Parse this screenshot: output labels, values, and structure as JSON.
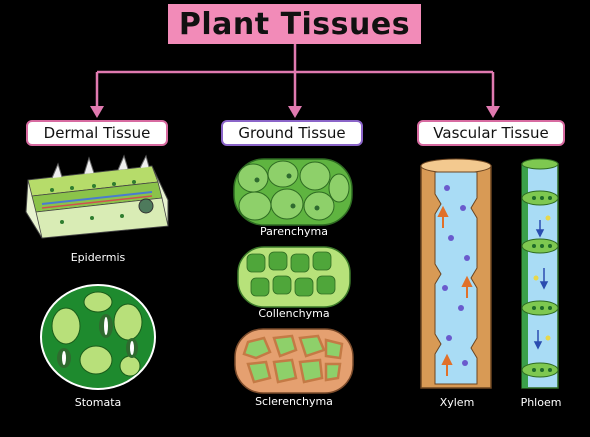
{
  "title": "Plant Tissues",
  "categories": {
    "dermal": "Dermal Tissue",
    "ground": "Ground Tissue",
    "vascular": "Vascular Tissue"
  },
  "labels": {
    "epidermis": "Epidermis",
    "stomata": "Stomata",
    "parenchyma": "Parenchyma",
    "collenchyma": "Collenchyma",
    "sclerenchyma": "Sclerenchyma",
    "xylem": "Xylem",
    "phloem": "Phloem"
  },
  "colors": {
    "connector": "#e07ab0",
    "title_bg": "#f28bb8",
    "cell_green": "#6cc04a",
    "xylem_wall": "#d89a55",
    "vessel_blue": "#a9dcf5"
  }
}
